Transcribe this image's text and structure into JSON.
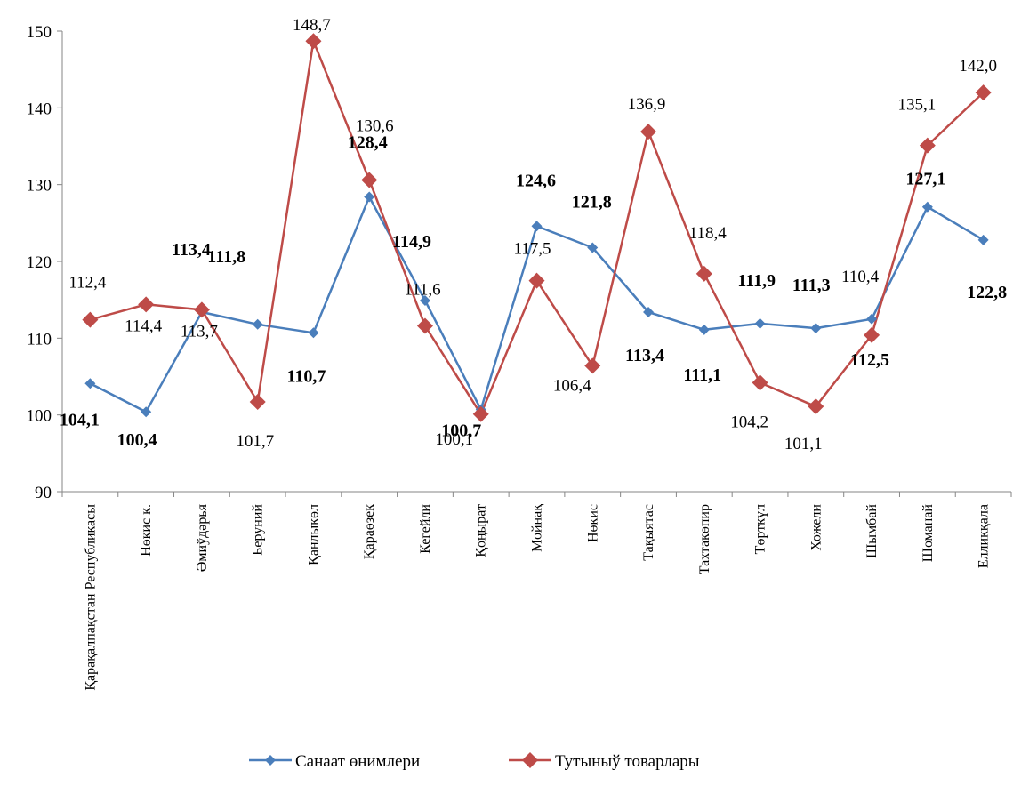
{
  "chart_data": {
    "type": "line",
    "title": "",
    "xlabel": "",
    "ylabel": "",
    "ylim": [
      90,
      150
    ],
    "yticks": [
      90,
      100,
      110,
      120,
      130,
      140,
      150
    ],
    "ytick_labels": [
      "90",
      "100",
      "110",
      "120",
      "130",
      "140",
      "150"
    ],
    "grid": false,
    "legend_position": "bottom",
    "categories": [
      "Қарақалпақстан Республикасы",
      "Нөкис к.",
      "Әмиўдәрья",
      "Беруний",
      "Қанлыкөл",
      "Қараөзек",
      "Кегейли",
      "Қоңырат",
      "Мойнақ",
      "Нөкис",
      "Тақыятас",
      "Тахтакөпир",
      "Төрткүл",
      "Хожели",
      "Шымбай",
      "Шоманай",
      "Елликқала"
    ],
    "series": [
      {
        "name": "Санаат өнимлери",
        "color": "#4A7EBB",
        "marker": "diamond",
        "values": [
          104.1,
          100.4,
          113.4,
          111.8,
          110.7,
          128.4,
          114.9,
          100.7,
          124.6,
          121.8,
          113.4,
          111.1,
          111.9,
          111.3,
          112.5,
          127.1,
          122.8
        ],
        "labels": [
          "104,1",
          "100,4",
          "113,4",
          "111,8",
          "110,7",
          "128,4",
          "114,9",
          "100,7",
          "124,6",
          "121,8",
          "113,4",
          "111,1",
          "111,9",
          "111,3",
          "112,5",
          "127,1",
          "122,8"
        ]
      },
      {
        "name": "Тутыныў товарлары",
        "color": "#BE4B48",
        "marker": "diamond",
        "values": [
          112.4,
          114.4,
          113.7,
          101.7,
          148.7,
          130.6,
          111.6,
          100.1,
          117.5,
          106.4,
          136.9,
          118.4,
          104.2,
          101.1,
          110.4,
          135.1,
          142.0
        ],
        "labels": [
          "112,4",
          "114,4",
          "113,7",
          "101,7",
          "148,7",
          "130,6",
          "111,6",
          "100,1",
          "117,5",
          "106,4",
          "136,9",
          "118,4",
          "104,2",
          "101,1",
          "110,4",
          "135,1",
          "142,0"
        ]
      }
    ]
  }
}
